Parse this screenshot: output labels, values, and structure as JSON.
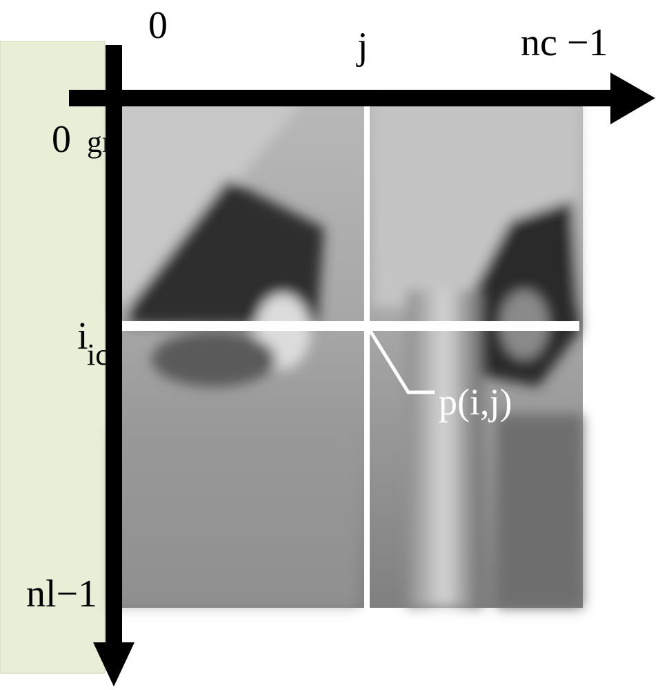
{
  "side_text": [
    "gr",
    "ic"
  ],
  "column_labels": [
    "0",
    "j",
    "nc −1"
  ],
  "row_labels": [
    "0",
    "i",
    "nl−1"
  ],
  "pixel_label": "p(i,j)"
}
